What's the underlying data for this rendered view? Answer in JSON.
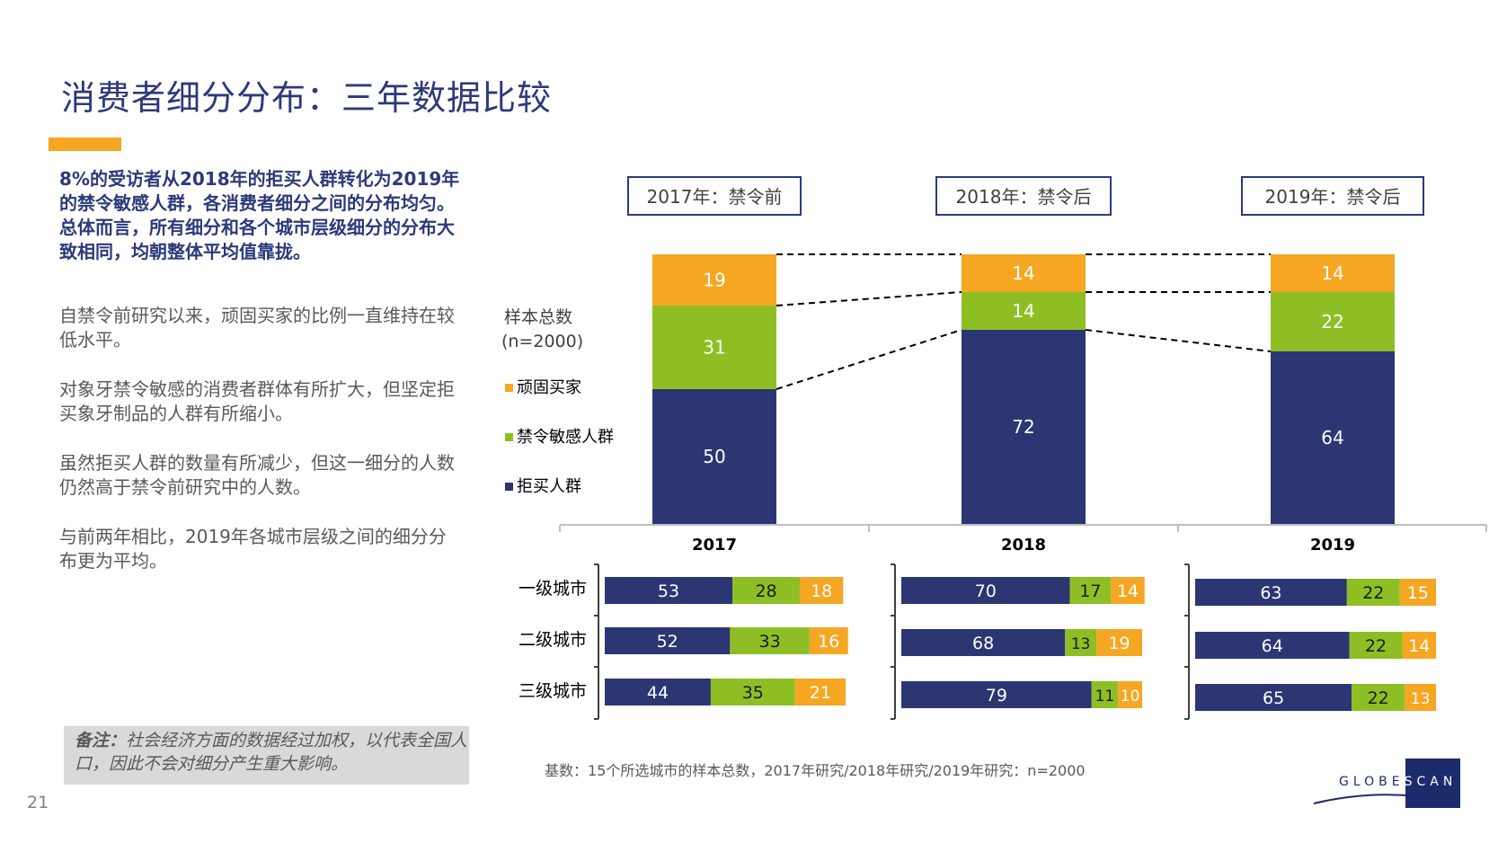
{
  "title": "消费者细分分布：三年数据比较",
  "lead": "8%的受访者从2018年的拒买人群转化为2019年的禁令敏感人群，各消费者细分之间的分布均匀。总体而言，所有细分和各个城市层级细分的分布大致相同，均朝整体平均值靠拢。",
  "paragraphs": [
    "自禁令前研究以来，顽固买家的比例一直维持在较低水平。",
    "对象牙禁令敏感的消费者群体有所扩大，但坚定拒买象牙制品的人群有所缩小。",
    "虽然拒买人群的数量有所减少，但这一细分的人数仍然高于禁令前研究中的人数。",
    "与前两年相比，2019年各城市层级之间的细分分布更为平均。"
  ],
  "note": {
    "label": "备注：",
    "text": "社会经济方面的数据经过加权，以代表全国人口，因此不会对细分产生重大影响。"
  },
  "page_number": "21",
  "base_text": "基数：15个所选城市的样本总数，2017年研究/2018年研究/2019年研究：n=2000",
  "logo": {
    "left": "GLOBE",
    "right": "SCAN"
  },
  "colors": {
    "navy": "#2b3673",
    "green": "#8dbf24",
    "orange": "#f5a623",
    "title": "#2b3a7a"
  },
  "chart_data": [
    {
      "type": "bar",
      "stacked": true,
      "categories": [
        "2017",
        "2018",
        "2019"
      ],
      "headers": [
        "2017年：禁令前",
        "2018年：禁令后",
        "2019年：禁令后"
      ],
      "legend_title": "样本总数",
      "legend_n": "(n=2000)",
      "series": [
        {
          "name": "拒买人群",
          "color": "#2b3673",
          "values": [
            50,
            72,
            64
          ]
        },
        {
          "name": "禁令敏感人群",
          "color": "#8dbf24",
          "values": [
            31,
            14,
            22
          ]
        },
        {
          "name": "顽固买家",
          "color": "#f5a623",
          "values": [
            19,
            14,
            14
          ]
        }
      ],
      "legend_order": [
        "顽固买家",
        "禁令敏感人群",
        "拒买人群"
      ],
      "ylim": [
        0,
        100
      ]
    },
    {
      "type": "bar",
      "orientation": "horizontal",
      "stacked": true,
      "rows": [
        "一级城市",
        "二级城市",
        "三级城市"
      ],
      "panels": [
        {
          "year": "2017",
          "data": [
            [
              53,
              28,
              18
            ],
            [
              52,
              33,
              16
            ],
            [
              44,
              35,
              21
            ]
          ]
        },
        {
          "year": "2018",
          "data": [
            [
              70,
              17,
              14
            ],
            [
              68,
              13,
              19
            ],
            [
              79,
              11,
              10
            ]
          ]
        },
        {
          "year": "2019",
          "data": [
            [
              63,
              22,
              15
            ],
            [
              64,
              22,
              14
            ],
            [
              65,
              22,
              13
            ]
          ]
        }
      ],
      "series_order": [
        "拒买人群",
        "禁令敏感人群",
        "顽固买家"
      ]
    }
  ]
}
